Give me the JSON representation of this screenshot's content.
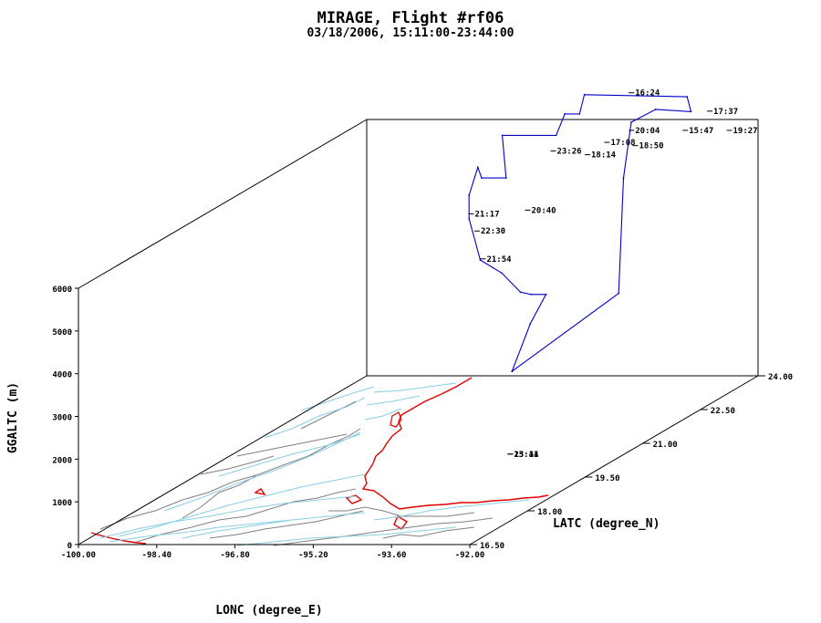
{
  "chart_data": {
    "type": "line",
    "title": "MIRAGE, Flight #rf06",
    "subtitle": "03/18/2006, 15:11:00-23:44:00",
    "xlabel": "LONC (degree_E)",
    "ylabel": "LATC (degree_N)",
    "zlabel": "GGALTC (m)",
    "xlim": [
      -100.0,
      -92.0
    ],
    "ylim": [
      16.5,
      24.0
    ],
    "zlim": [
      0,
      6000
    ],
    "x_ticks": [
      "-100.00",
      "-98.40",
      "-96.80",
      "-95.20",
      "-93.60",
      "-92.00"
    ],
    "y_ticks": [
      "16.50",
      "18.00",
      "19.50",
      "21.00",
      "22.50",
      "24.00"
    ],
    "z_ticks": [
      "0",
      "1000",
      "2000",
      "3000",
      "4000",
      "5000",
      "6000"
    ],
    "colors": {
      "track": "#0000cc",
      "coast": "#e00000",
      "rivers": "#87cee6",
      "borders": "#808080",
      "axes": "#000000"
    },
    "series": [
      {
        "points": [
          {
            "lon": -94.2,
            "lat": 20.4,
            "alt": 2000
          },
          {
            "lon": -94.3,
            "lat": 23.3,
            "alt": 2300
          },
          {
            "lon": -94.2,
            "lat": 23.3,
            "alt": 5000
          },
          {
            "lon": -94.2,
            "lat": 23.5,
            "alt": 6200
          },
          {
            "lon": -93.7,
            "lat": 23.5,
            "alt": 6500
          },
          {
            "lon": -92.9,
            "lat": 23.4,
            "alt": 6500
          },
          {
            "lon": -92.9,
            "lat": 23.3,
            "alt": 6900
          },
          {
            "lon": -95.0,
            "lat": 23.3,
            "alt": 6950
          },
          {
            "lon": -95.1,
            "lat": 23.3,
            "alt": 6500
          },
          {
            "lon": -95.4,
            "lat": 23.3,
            "alt": 6500
          },
          {
            "lon": -95.5,
            "lat": 23.2,
            "alt": 6050
          },
          {
            "lon": -96.6,
            "lat": 23.2,
            "alt": 6050
          },
          {
            "lon": -96.6,
            "lat": 23.3,
            "alt": 5000
          },
          {
            "lon": -97.1,
            "lat": 23.3,
            "alt": 5000
          },
          {
            "lon": -97.1,
            "lat": 23.2,
            "alt": 5300
          },
          {
            "lon": -97.2,
            "lat": 23.1,
            "alt": 4700
          },
          {
            "lon": -97.2,
            "lat": 23.1,
            "alt": 4150
          },
          {
            "lon": -96.5,
            "lat": 22.5,
            "alt": 3500
          },
          {
            "lon": -95.9,
            "lat": 22.3,
            "alt": 3300
          },
          {
            "lon": -95.6,
            "lat": 22.4,
            "alt": 2800
          },
          {
            "lon": -95.3,
            "lat": 22.3,
            "alt": 2800
          },
          {
            "lon": -95.0,
            "lat": 22.3,
            "alt": 2800
          },
          {
            "lon": -94.3,
            "lat": 21.0,
            "alt": 2800
          },
          {
            "lon": -94.2,
            "lat": 20.4,
            "alt": 2000
          }
        ]
      }
    ],
    "time_labels": [
      {
        "text": "16:24",
        "lon": -94.0,
        "lat": 23.3,
        "alt": 6930
      },
      {
        "text": "17:37",
        "lon": -92.4,
        "lat": 23.3,
        "alt": 6500
      },
      {
        "text": "19:27",
        "lon": -92.0,
        "lat": 23.3,
        "alt": 6050
      },
      {
        "text": "15:47",
        "lon": -92.9,
        "lat": 23.3,
        "alt": 6050
      },
      {
        "text": "20:04",
        "lon": -94.0,
        "lat": 23.3,
        "alt": 6050
      },
      {
        "text": "17:08",
        "lon": -94.5,
        "lat": 23.3,
        "alt": 5770
      },
      {
        "text": "18:50",
        "lon": -94.0,
        "lat": 23.4,
        "alt": 5640
      },
      {
        "text": "23:26",
        "lon": -95.6,
        "lat": 23.3,
        "alt": 5570
      },
      {
        "text": "18:14",
        "lon": -94.9,
        "lat": 23.3,
        "alt": 5480
      },
      {
        "text": "21:17",
        "lon": -97.2,
        "lat": 23.2,
        "alt": 4150
      },
      {
        "text": "20:40",
        "lon": -96.2,
        "lat": 23.4,
        "alt": 4130
      },
      {
        "text": "22:30",
        "lon": -97.0,
        "lat": 23.1,
        "alt": 3800
      },
      {
        "text": "21:54",
        "lon": -96.8,
        "lat": 23.0,
        "alt": 3200
      },
      {
        "text": "15:11",
        "lon": -94.2,
        "lat": 20.4,
        "alt": 0
      },
      {
        "text": "23:44",
        "lon": -94.2,
        "lat": 20.4,
        "alt": 0
      }
    ]
  }
}
